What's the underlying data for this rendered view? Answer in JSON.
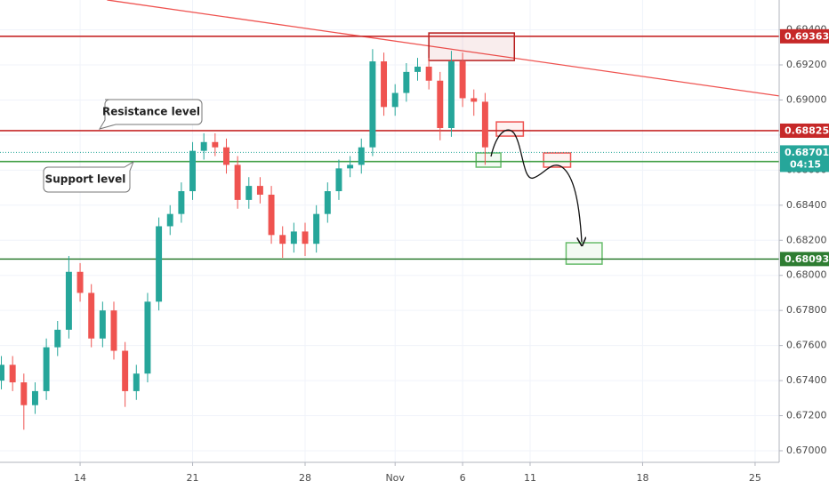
{
  "chart_data": {
    "type": "candlestick",
    "x": [
      -3.5,
      -3,
      -2.5,
      -2,
      -1.5,
      -1,
      -0.5,
      0,
      0.5,
      1,
      1.5,
      2,
      2.5,
      3,
      3.5,
      4,
      4.5,
      5,
      5.5,
      6,
      6.5,
      7,
      7.5,
      8,
      8.5,
      9,
      9.5,
      10,
      10.5,
      11,
      11.5,
      12,
      12.5,
      13,
      13.5,
      14,
      14.5,
      15,
      15.5,
      16,
      16.5,
      17,
      17.5,
      18
    ],
    "open": [
      0.674,
      0.6749,
      0.6739,
      0.6726,
      0.6734,
      0.6759,
      0.6769,
      0.6802,
      0.679,
      0.6764,
      0.678,
      0.6757,
      0.6734,
      0.6744,
      0.6785,
      0.6828,
      0.6835,
      0.6848,
      0.6871,
      0.6876,
      0.6873,
      0.6863,
      0.6843,
      0.6851,
      0.6846,
      0.6823,
      0.6818,
      0.6825,
      0.6818,
      0.6835,
      0.6848,
      0.6861,
      0.6863,
      0.6873,
      0.6922,
      0.6896,
      0.6904,
      0.6916,
      0.6919,
      0.6911,
      0.6884,
      0.6922,
      0.6901,
      0.6899
    ],
    "high": [
      0.6754,
      0.6754,
      0.6744,
      0.6739,
      0.6764,
      0.6774,
      0.6811,
      0.6807,
      0.6795,
      0.6785,
      0.6785,
      0.6762,
      0.6749,
      0.679,
      0.6833,
      0.684,
      0.6853,
      0.6876,
      0.6881,
      0.6881,
      0.6878,
      0.6868,
      0.6856,
      0.6856,
      0.6851,
      0.6828,
      0.683,
      0.683,
      0.684,
      0.6853,
      0.6866,
      0.6868,
      0.6878,
      0.6929,
      0.6927,
      0.6909,
      0.6921,
      0.6924,
      0.6924,
      0.6916,
      0.6928,
      0.6927,
      0.6906,
      0.6904
    ],
    "low": [
      0.6735,
      0.6734,
      0.6712,
      0.6721,
      0.6729,
      0.6754,
      0.6764,
      0.6785,
      0.6759,
      0.6759,
      0.6752,
      0.6725,
      0.6729,
      0.6739,
      0.678,
      0.6823,
      0.683,
      0.6843,
      0.6866,
      0.6868,
      0.6858,
      0.6838,
      0.6838,
      0.6841,
      0.6818,
      0.681,
      0.6813,
      0.6811,
      0.6813,
      0.683,
      0.6843,
      0.6856,
      0.6858,
      0.6868,
      0.6891,
      0.6891,
      0.6899,
      0.6911,
      0.6906,
      0.6877,
      0.6879,
      0.6896,
      0.6891,
      0.6863
    ],
    "close": [
      0.6749,
      0.6739,
      0.6726,
      0.6734,
      0.6759,
      0.6769,
      0.6802,
      0.679,
      0.6764,
      0.678,
      0.6757,
      0.6734,
      0.6744,
      0.6785,
      0.6828,
      0.6835,
      0.6848,
      0.6871,
      0.6876,
      0.6873,
      0.6863,
      0.6843,
      0.6851,
      0.6846,
      0.6823,
      0.6818,
      0.6825,
      0.6818,
      0.6835,
      0.6848,
      0.6861,
      0.6863,
      0.6873,
      0.6922,
      0.6896,
      0.6904,
      0.6916,
      0.6919,
      0.6911,
      0.6884,
      0.6922,
      0.6901,
      0.6899,
      0.6873
    ],
    "up_color": "#26a69a",
    "down_color": "#ef5350",
    "xlim": [
      -3.56,
      31.07
    ],
    "ylim": [
      0.66934,
      0.6957
    ],
    "xticks": [
      {
        "value": 0,
        "label": "14"
      },
      {
        "value": 5,
        "label": "21"
      },
      {
        "value": 10,
        "label": "28"
      },
      {
        "value": 14,
        "label": "Nov"
      },
      {
        "value": 17,
        "label": "6"
      },
      {
        "value": 20,
        "label": "11"
      },
      {
        "value": 25,
        "label": "18"
      },
      {
        "value": 30,
        "label": "25"
      }
    ],
    "yticks": [
      {
        "value": 0.67,
        "label": "0.67000"
      },
      {
        "value": 0.672,
        "label": "0.67200"
      },
      {
        "value": 0.674,
        "label": "0.67400"
      },
      {
        "value": 0.676,
        "label": "0.67600"
      },
      {
        "value": 0.678,
        "label": "0.67800"
      },
      {
        "value": 0.68,
        "label": "0.68000"
      },
      {
        "value": 0.682,
        "label": "0.68200"
      },
      {
        "value": 0.684,
        "label": "0.68400"
      },
      {
        "value": 0.686,
        "label": "0.68600"
      },
      {
        "value": 0.688,
        "label": "0.68800"
      },
      {
        "value": 0.69,
        "label": "0.69000"
      },
      {
        "value": 0.692,
        "label": "0.69200"
      },
      {
        "value": 0.694,
        "label": "0.69400"
      }
    ],
    "grid": true,
    "levels": [
      {
        "value": 0.69363,
        "color": "#c62828"
      },
      {
        "value": 0.68825,
        "color": "#c62828"
      },
      {
        "value": 0.68649,
        "color": "#43a047"
      },
      {
        "value": 0.68093,
        "color": "#2e7d32"
      }
    ],
    "current_price": {
      "value": 0.68701,
      "countdown": "04:15",
      "color": "#26a69a"
    },
    "trendline": {
      "x": [
        1.2,
        31.07
      ],
      "y": [
        0.6957,
        0.69023
      ],
      "color": "#ef5350"
    },
    "zones": [
      {
        "x": [
          15.5,
          19.3
        ],
        "y": [
          0.69225,
          0.69382
        ],
        "color": "#b71c1c"
      },
      {
        "x": [
          18.5,
          19.7
        ],
        "y": [
          0.68794,
          0.68875
        ],
        "color": "#ef5350"
      },
      {
        "x": [
          17.6,
          18.7
        ],
        "y": [
          0.68617,
          0.68698
        ],
        "color": "#66bb6a"
      },
      {
        "x": [
          20.6,
          21.8
        ],
        "y": [
          0.68617,
          0.68698
        ],
        "color": "#ef5350"
      },
      {
        "x": [
          21.6,
          23.2
        ],
        "y": [
          0.68064,
          0.68186
        ],
        "color": "#66bb6a"
      }
    ],
    "annotations": [
      {
        "text": "Resistance level"
      },
      {
        "text": "Support level"
      }
    ]
  }
}
